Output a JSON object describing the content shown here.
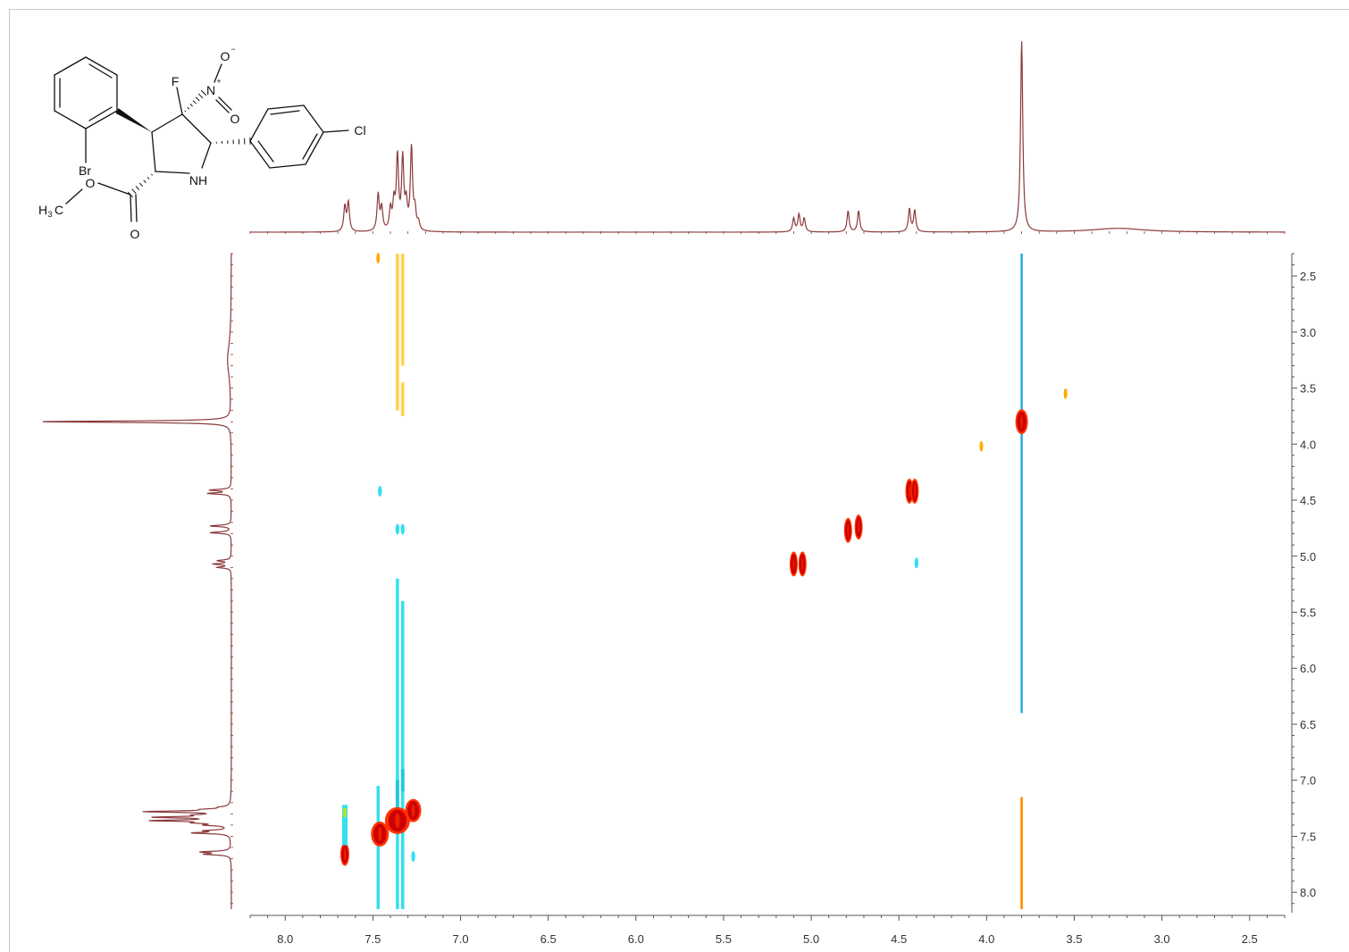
{
  "chart_data": {
    "type": "heatmap",
    "x_axis": {
      "ticks": [
        "8.0",
        "7.5",
        "7.0",
        "6.5",
        "6.0",
        "5.5",
        "5.0",
        "4.5",
        "4.0",
        "3.5",
        "3.0",
        "2.5"
      ],
      "values": [
        8.0,
        7.5,
        7.0,
        6.5,
        6.0,
        5.5,
        5.0,
        4.5,
        4.0,
        3.5,
        3.0,
        2.5
      ],
      "range": [
        8.2,
        2.3
      ],
      "reversed": true
    },
    "y_axis": {
      "ticks": [
        "2.5",
        "3.0",
        "3.5",
        "4.0",
        "4.5",
        "5.0",
        "5.5",
        "6.0",
        "6.5",
        "7.0",
        "7.5",
        "8.0"
      ],
      "values": [
        2.5,
        3.0,
        3.5,
        4.0,
        4.5,
        5.0,
        5.5,
        6.0,
        6.5,
        7.0,
        7.5,
        8.0
      ],
      "range": [
        2.3,
        8.15
      ],
      "position": "right"
    },
    "projection_peaks": [
      {
        "ppm": 7.66,
        "height": 0.13
      },
      {
        "ppm": 7.64,
        "height": 0.15
      },
      {
        "ppm": 7.47,
        "height": 0.19
      },
      {
        "ppm": 7.45,
        "height": 0.12
      },
      {
        "ppm": 7.4,
        "height": 0.11
      },
      {
        "ppm": 7.38,
        "height": 0.14
      },
      {
        "ppm": 7.36,
        "height": 0.38
      },
      {
        "ppm": 7.33,
        "height": 0.37
      },
      {
        "ppm": 7.31,
        "height": 0.13
      },
      {
        "ppm": 7.28,
        "height": 0.43
      },
      {
        "ppm": 7.26,
        "height": 0.1
      },
      {
        "ppm": 7.24,
        "height": 0.04
      },
      {
        "ppm": 5.1,
        "height": 0.07
      },
      {
        "ppm": 5.07,
        "height": 0.09
      },
      {
        "ppm": 5.04,
        "height": 0.07
      },
      {
        "ppm": 4.79,
        "height": 0.11
      },
      {
        "ppm": 4.73,
        "height": 0.11
      },
      {
        "ppm": 4.44,
        "height": 0.12
      },
      {
        "ppm": 4.41,
        "height": 0.11
      },
      {
        "ppm": 3.8,
        "height": 1.0
      }
    ],
    "broad_peaks": [
      {
        "ppm": 3.25,
        "height": 0.02
      }
    ],
    "diagonal_peaks": [
      {
        "x": 7.66,
        "y": 7.66,
        "sign": "positive"
      },
      {
        "x": 7.46,
        "y": 7.48,
        "sign": "positive"
      },
      {
        "x": 7.36,
        "y": 7.36,
        "sign": "positive"
      },
      {
        "x": 7.27,
        "y": 7.27,
        "sign": "positive"
      },
      {
        "x": 5.07,
        "y": 5.07,
        "sign": "positive"
      },
      {
        "x": 4.76,
        "y": 4.76,
        "sign": "positive"
      },
      {
        "x": 4.42,
        "y": 4.42,
        "sign": "positive"
      },
      {
        "x": 3.8,
        "y": 3.8,
        "sign": "positive"
      }
    ],
    "cross_peaks": [
      {
        "x": 7.46,
        "y": 4.42,
        "sign": "negative"
      },
      {
        "x": 7.36,
        "y": 4.76,
        "sign": "negative"
      },
      {
        "x": 7.33,
        "y": 4.76,
        "sign": "negative"
      },
      {
        "x": 4.4,
        "y": 5.06,
        "sign": "negative"
      },
      {
        "x": 4.03,
        "y": 4.02,
        "sign": "positive"
      },
      {
        "x": 3.55,
        "y": 3.55,
        "sign": "positive"
      },
      {
        "x": 7.47,
        "y": 2.34,
        "sign": "positive"
      },
      {
        "x": 7.66,
        "y": 7.27,
        "sign": "negative"
      },
      {
        "x": 7.66,
        "y": 7.48,
        "sign": "negative"
      },
      {
        "x": 7.27,
        "y": 7.68,
        "sign": "negative"
      }
    ],
    "t1_noise_streaks": [
      {
        "x": 7.36,
        "y_from": 2.3,
        "y_to": 3.7,
        "sign": "positive"
      },
      {
        "x": 7.33,
        "y_from": 2.3,
        "y_to": 3.3,
        "sign": "positive"
      },
      {
        "x": 7.33,
        "y_from": 3.45,
        "y_to": 3.75,
        "sign": "positive"
      },
      {
        "x": 7.36,
        "y_from": 5.2,
        "y_to": 8.15,
        "sign": "negative"
      },
      {
        "x": 7.33,
        "y_from": 5.4,
        "y_to": 8.15,
        "sign": "negative"
      },
      {
        "x": 7.47,
        "y_from": 7.05,
        "y_to": 8.15,
        "sign": "negative"
      },
      {
        "x": 3.8,
        "y_from": 2.3,
        "y_to": 6.4,
        "sign": "negative"
      },
      {
        "x": 3.8,
        "y_from": 7.15,
        "y_to": 8.15,
        "sign": "positive"
      }
    ],
    "colors": {
      "positive_core": "#cc0000",
      "positive_edge": "#ff3300",
      "positive_weak": "#ffaa00",
      "positive_faint": "#ffd24a",
      "negative": "#33e0f0",
      "negative_strong": "#2aa8e0",
      "projection": "#8b3a3a",
      "axis": "#555555"
    }
  },
  "molecule": {
    "atom_labels": [
      "F",
      "N",
      "+",
      "O",
      "−",
      "O",
      "Cl",
      "Br",
      "O",
      "NH",
      "H",
      "3",
      "C",
      "O"
    ]
  }
}
